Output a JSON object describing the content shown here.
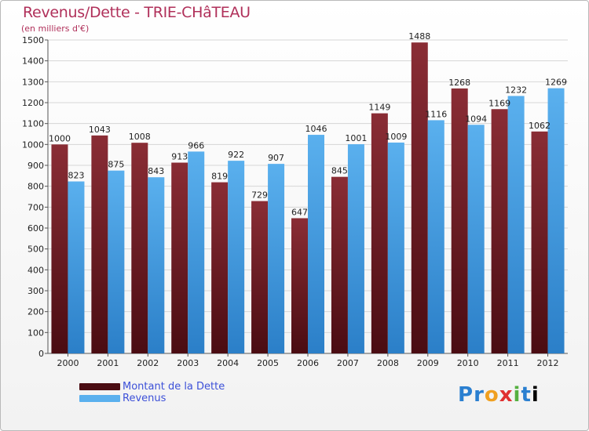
{
  "header": {
    "title": "Revenus/Dette - TRIE-CHâTEAU",
    "subtitle": "(en milliers d'€)"
  },
  "logo": {
    "text": "Proxiti"
  },
  "colors": {
    "debt_top": "#8a2d35",
    "debt_bottom": "#4a0c12",
    "revenue_top": "#5ab0ee",
    "revenue_bottom": "#2b7fc8",
    "title": "#b0305a",
    "legend_text": "#3c50d8"
  },
  "chart_data": {
    "type": "bar",
    "title": "Revenus/Dette - TRIE-CHâTEAU",
    "ylabel": "(en milliers d'€)",
    "xlabel": "",
    "ylim": [
      0,
      1500
    ],
    "yticks": [
      0,
      100,
      200,
      300,
      400,
      500,
      600,
      700,
      800,
      900,
      1000,
      1100,
      1200,
      1300,
      1400,
      1500
    ],
    "grid": true,
    "legend_position": "bottom-left",
    "categories": [
      "2000",
      "2001",
      "2002",
      "2003",
      "2004",
      "2005",
      "2006",
      "2007",
      "2008",
      "2009",
      "2010",
      "2011",
      "2012"
    ],
    "series": [
      {
        "name": "Montant de la Dette",
        "values": [
          1000,
          1043,
          1008,
          913,
          819,
          729,
          647,
          845,
          1149,
          1488,
          1268,
          1169,
          1062
        ],
        "labels": [
          "1000",
          "1043",
          "1008",
          "913",
          "819",
          "729",
          "647",
          "845",
          "1149",
          "1488",
          "1268",
          "1169",
          "1062"
        ]
      },
      {
        "name": "Revenus",
        "values": [
          823,
          875,
          843,
          966,
          922,
          907,
          1046,
          1001,
          1009,
          1116,
          1094,
          1232,
          1269
        ],
        "labels": [
          "823",
          "875",
          "843",
          "966",
          "922",
          "907",
          "1046",
          "1001",
          "1009",
          "1116",
          "1094",
          "1232",
          "1269"
        ]
      }
    ]
  }
}
